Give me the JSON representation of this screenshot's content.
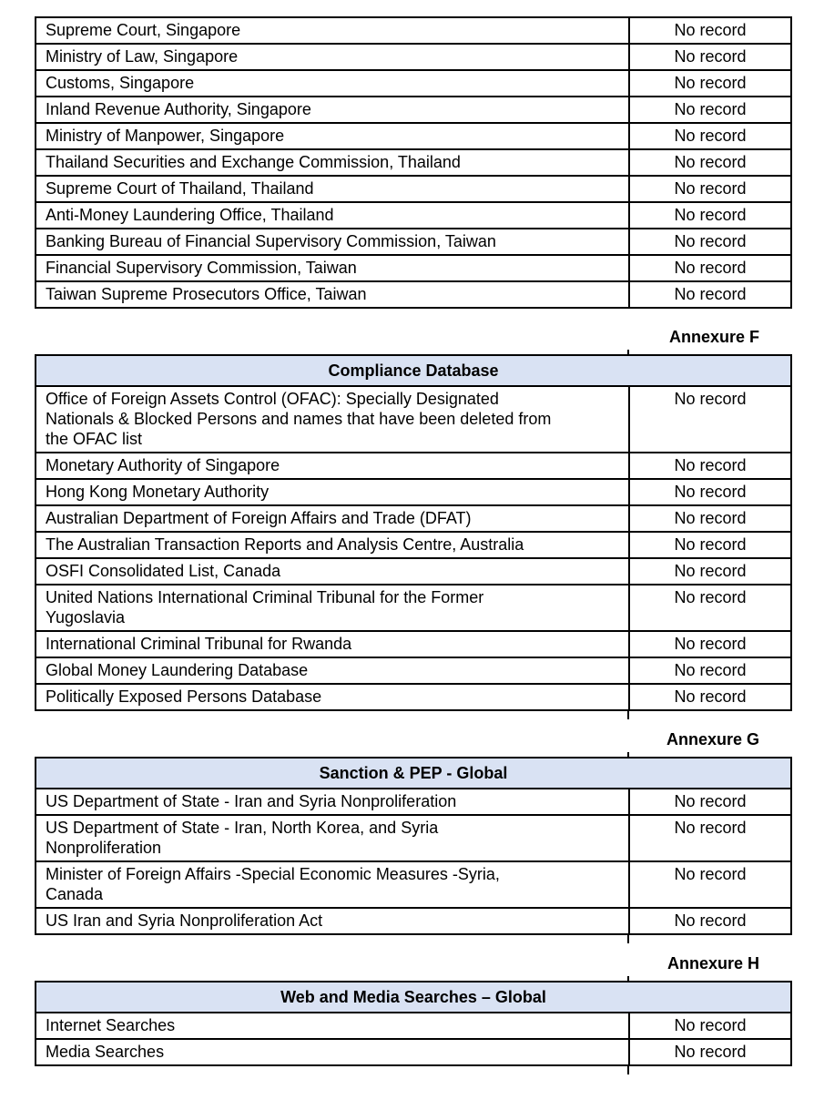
{
  "page": {
    "background": "#ffffff",
    "text_color": "#000000",
    "border_color": "#000000",
    "header_bg": "#d9e2f3"
  },
  "tables": {
    "government_regulatory": {
      "rows": [
        {
          "source": "Supreme Court, Singapore",
          "result": "No record"
        },
        {
          "source": "Ministry of Law, Singapore",
          "result": "No record"
        },
        {
          "source": "Customs, Singapore",
          "result": "No record"
        },
        {
          "source": "Inland Revenue Authority, Singapore",
          "result": "No record"
        },
        {
          "source": "Ministry of Manpower, Singapore",
          "result": "No record"
        },
        {
          "source": "Thailand Securities and Exchange Commission, Thailand",
          "result": "No record"
        },
        {
          "source": "Supreme Court of Thailand, Thailand",
          "result": "No record"
        },
        {
          "source": "Anti-Money Laundering Office, Thailand",
          "result": "No record"
        },
        {
          "source": "Banking Bureau of Financial Supervisory Commission, Taiwan",
          "result": "No record"
        },
        {
          "source": "Financial Supervisory Commission, Taiwan",
          "result": "No record"
        },
        {
          "source": "Taiwan Supreme Prosecutors Office, Taiwan",
          "result": "No record"
        }
      ]
    },
    "compliance_database": {
      "annexure": "Annexure F",
      "title": "Compliance Database",
      "rows": [
        {
          "source": "Office of Foreign Assets Control (OFAC): Specially Designated\nNationals & Blocked Persons and names that have been deleted from\nthe OFAC list",
          "result": "No record"
        },
        {
          "source": "Monetary Authority of Singapore",
          "result": "No record"
        },
        {
          "source": "Hong Kong Monetary Authority",
          "result": "No record"
        },
        {
          "source": "Australian Department of Foreign Affairs and Trade (DFAT)",
          "result": "No record"
        },
        {
          "source": "The Australian Transaction Reports and Analysis Centre, Australia",
          "result": "No record"
        },
        {
          "source": "OSFI Consolidated List, Canada",
          "result": "No record"
        },
        {
          "source": "United Nations International Criminal Tribunal for the Former\nYugoslavia",
          "result": "No record"
        },
        {
          "source": "International Criminal Tribunal for Rwanda",
          "result": "No record"
        },
        {
          "source": "Global Money Laundering Database",
          "result": "No record"
        },
        {
          "source": "Politically Exposed Persons Database",
          "result": "No record"
        }
      ]
    },
    "sanction_pep": {
      "annexure": "Annexure G",
      "title": "Sanction & PEP - Global",
      "rows": [
        {
          "source": "US Department of State - Iran and Syria Nonproliferation",
          "result": "No record"
        },
        {
          "source": "US Department of State - Iran, North Korea, and Syria\nNonproliferation",
          "result": "No record"
        },
        {
          "source": "Minister of Foreign Affairs -Special Economic Measures -Syria,\nCanada",
          "result": "No record"
        },
        {
          "source": "US Iran and Syria Nonproliferation Act",
          "result": "No record"
        }
      ]
    },
    "web_media": {
      "annexure": "Annexure H",
      "title": "Web and Media Searches – Global",
      "rows": [
        {
          "source": "Internet Searches",
          "result": "No record"
        },
        {
          "source": "Media Searches",
          "result": "No record"
        }
      ]
    }
  }
}
